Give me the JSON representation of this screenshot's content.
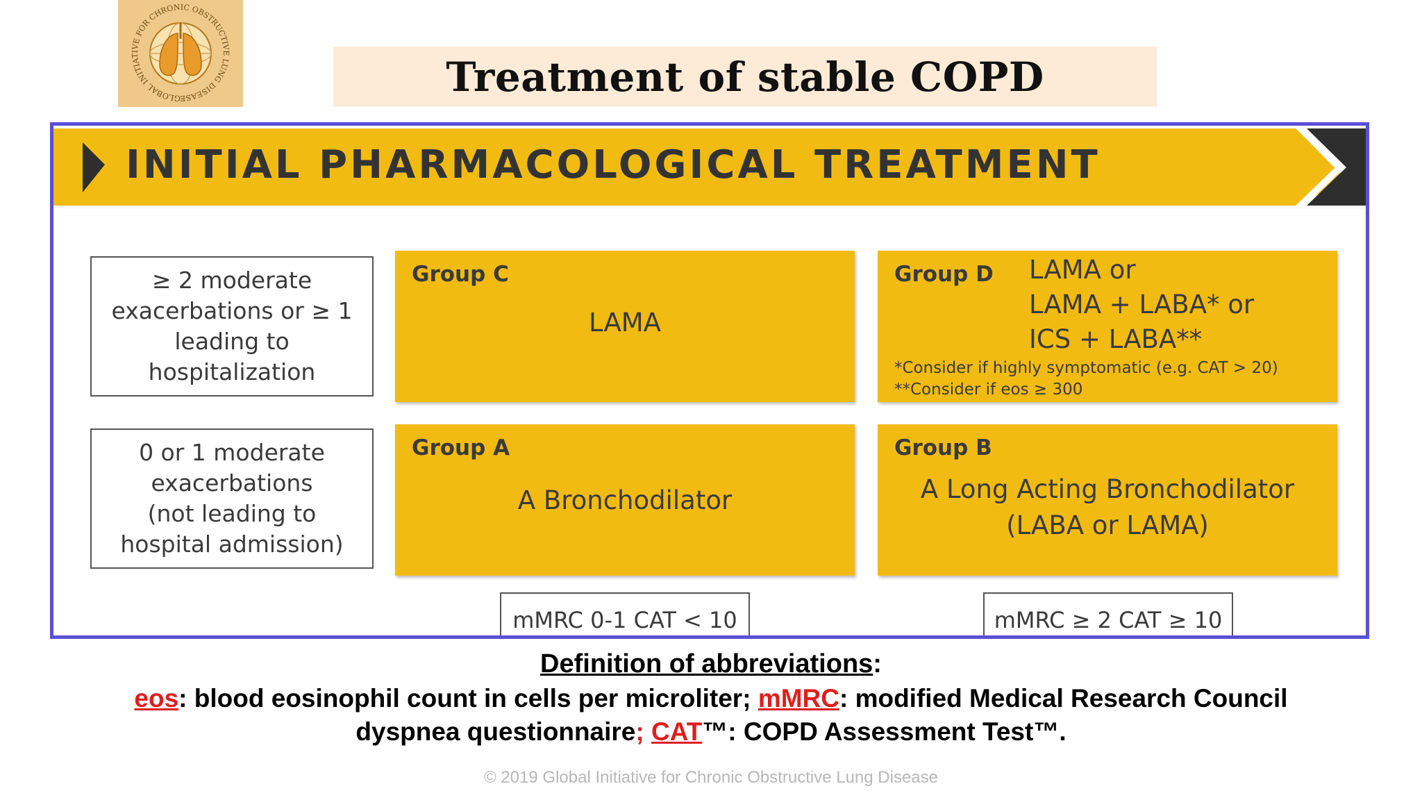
{
  "logo": {
    "label": "GOLD logo",
    "ring_text": "GLOBAL INITIATIVE FOR CHRONIC OBSTRUCTIVE LUNG DISEASE",
    "background": "#efc98a"
  },
  "slide": {
    "title": "Treatment of stable COPD"
  },
  "banner": {
    "title": "INITIAL PHARMACOLOGICAL TREATMENT",
    "color": "#f2bb12"
  },
  "criteria": {
    "high": "≥ 2 moderate\nexacerbations or ≥ 1\nleading to\nhospitalization",
    "low": "0 or 1 moderate\nexacerbations\n(not leading to\nhospital admission)"
  },
  "groups": {
    "c": {
      "name": "Group C",
      "treatment": "LAMA"
    },
    "d": {
      "name": "Group D",
      "options": [
        "LAMA  or",
        "LAMA + LABA* or",
        "ICS + LABA**"
      ],
      "notes": [
        "*Consider if highly symptomatic (e.g. CAT > 20)",
        "**Consider if eos ≥ 300"
      ]
    },
    "a": {
      "name": "Group A",
      "treatment": "A Bronchodilator"
    },
    "b": {
      "name": "Group B",
      "treatment_line1": "A  Long Acting Bronchodilator",
      "treatment_line2": "(LABA or LAMA)"
    }
  },
  "axis": {
    "left": "mMRC 0-1 CAT < 10",
    "right": "mMRC ≥ 2 CAT ≥ 10"
  },
  "definitions": {
    "title": "Definition of abbreviations",
    "colon": ":",
    "eos_abbr": "eos",
    "eos_def": ": blood eosinophil count in cells per microliter; ",
    "mmrc_abbr": "mMRC",
    "mmrc_def": ": modified Medical Research Council",
    "line2_start": "dyspnea questionnaire",
    "semicolon": ";",
    "cat_abbr": "CAT",
    "cat_def": "™: COPD Assessment Test™."
  },
  "footer": {
    "copyright": "© 2019 Global Initiative for Chronic Obstructive Lung Disease"
  },
  "colors": {
    "frame": "#5a4fd6",
    "group_fill": "#f2bb12",
    "abbr": "#e01e1e",
    "title_bg": "#fdebd7"
  }
}
